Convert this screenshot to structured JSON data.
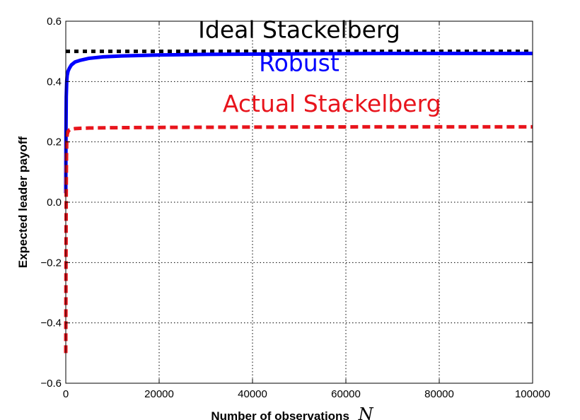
{
  "chart_data": {
    "type": "line",
    "xlabel": "Number of observations",
    "xlabel_var": "N",
    "ylabel": "Expected leader payoff",
    "xlim": [
      0,
      100000
    ],
    "ylim": [
      -0.6,
      0.6
    ],
    "xticks": [
      "0",
      "20000",
      "40000",
      "60000",
      "80000",
      "100000"
    ],
    "yticks": [
      "−0.6",
      "−0.4",
      "−0.2",
      "0.0",
      "0.2",
      "0.4",
      "0.6"
    ],
    "grid": true,
    "series": [
      {
        "name": "Ideal Stackelberg",
        "color": "#000000",
        "style": "dotted",
        "x": [
          0,
          100000
        ],
        "y": [
          0.5,
          0.5
        ]
      },
      {
        "name": "Robust",
        "color": "#0000ff",
        "style": "solid",
        "x": [
          0,
          50,
          100,
          200,
          300,
          500,
          800,
          1200,
          2000,
          3000,
          5000,
          8000,
          12000,
          20000,
          30000,
          50000,
          70000,
          100000
        ],
        "y": [
          0.03,
          0.25,
          0.35,
          0.4,
          0.42,
          0.435,
          0.445,
          0.455,
          0.465,
          0.47,
          0.477,
          0.482,
          0.485,
          0.488,
          0.49,
          0.492,
          0.493,
          0.493
        ]
      },
      {
        "name": "Actual Stackelberg",
        "color": "#e8141c",
        "style": "dashed",
        "x": [
          0,
          30,
          60,
          100,
          150,
          200,
          300,
          500,
          800,
          1200,
          2000,
          3000,
          5000,
          10000,
          20000,
          40000,
          70000,
          100000
        ],
        "y": [
          -0.5,
          -0.3,
          -0.1,
          0.05,
          0.15,
          0.2,
          0.225,
          0.235,
          0.24,
          0.242,
          0.244,
          0.245,
          0.246,
          0.247,
          0.248,
          0.249,
          0.25,
          0.25
        ]
      }
    ],
    "annotations": [
      {
        "text": "Ideal Stackelberg",
        "color": "#000000",
        "x": 50000,
        "y": 0.545
      },
      {
        "text": "Robust",
        "color": "#0000ff",
        "x": 50000,
        "y": 0.435
      },
      {
        "text": "Actual Stackelberg",
        "color": "#e8141c",
        "x": 57000,
        "y": 0.3
      }
    ]
  }
}
